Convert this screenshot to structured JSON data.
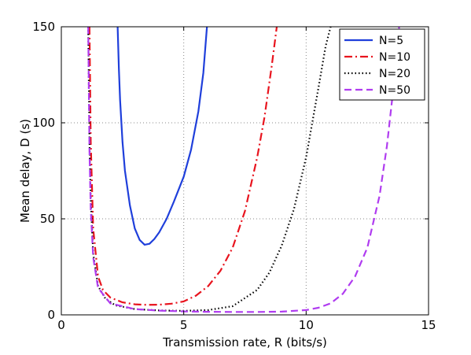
{
  "chart_data": {
    "type": "line",
    "xlabel": "Transmission rate, R (bits/s)",
    "ylabel": "Mean delay, D (s)",
    "xlim": [
      0,
      15
    ],
    "ylim": [
      0,
      150
    ],
    "xticks": [
      "0",
      "5",
      "10",
      "15"
    ],
    "yticks": [
      "0",
      "50",
      "100",
      "150"
    ],
    "grid": true,
    "legend_position": "top-right",
    "series": [
      {
        "name": "N=5",
        "color": "#1f3fdb",
        "style": "solid",
        "x": [
          2.3,
          2.35,
          2.4,
          2.5,
          2.6,
          2.8,
          3.0,
          3.2,
          3.4,
          3.6,
          3.8,
          4.0,
          4.3,
          4.6,
          5.0,
          5.3,
          5.6,
          5.8,
          5.95
        ],
        "y": [
          150,
          128,
          112,
          90,
          75,
          57,
          45,
          39,
          36.5,
          37,
          39.5,
          43,
          50,
          59,
          72,
          86,
          106,
          126,
          150
        ]
      },
      {
        "name": "N=10",
        "color": "#e8141e",
        "style": "dashdot",
        "x": [
          1.15,
          1.2,
          1.3,
          1.5,
          1.7,
          2.0,
          2.5,
          3.0,
          3.5,
          4.0,
          4.5,
          5.0,
          5.5,
          6.0,
          6.5,
          7.0,
          7.5,
          8.0,
          8.3,
          8.6,
          8.8
        ],
        "y": [
          150,
          90,
          45,
          20,
          13,
          9,
          6.5,
          5.5,
          5.2,
          5.3,
          5.8,
          7,
          10,
          15,
          23,
          35,
          54,
          82,
          103,
          130,
          150
        ]
      },
      {
        "name": "N=20",
        "color": "#000000",
        "style": "dotted",
        "x": [
          1.1,
          1.15,
          1.2,
          1.3,
          1.5,
          1.8,
          2.2,
          3.0,
          4.0,
          5.0,
          6.0,
          7.0,
          8.0,
          8.5,
          9.0,
          9.5,
          10.0,
          10.5,
          10.8,
          11.0
        ],
        "y": [
          150,
          90,
          60,
          32,
          15,
          8.5,
          5,
          3,
          2.3,
          2.1,
          2.5,
          4.5,
          13,
          22,
          36,
          55,
          82,
          118,
          140,
          150
        ]
      },
      {
        "name": "N=50",
        "color": "#b03cf0",
        "style": "dashed",
        "x": [
          1.1,
          1.15,
          1.2,
          1.3,
          1.5,
          2.0,
          3.0,
          4.0,
          5.0,
          6.0,
          7.0,
          8.0,
          9.0,
          10.0,
          10.5,
          11.0,
          11.5,
          12.0,
          12.5,
          13.0,
          13.3,
          13.6,
          13.8
        ],
        "y": [
          150,
          85,
          55,
          30,
          14,
          6,
          3,
          2.2,
          1.8,
          1.6,
          1.5,
          1.5,
          1.7,
          2.5,
          3.7,
          6,
          11,
          20,
          35,
          62,
          88,
          122,
          150
        ]
      }
    ]
  }
}
